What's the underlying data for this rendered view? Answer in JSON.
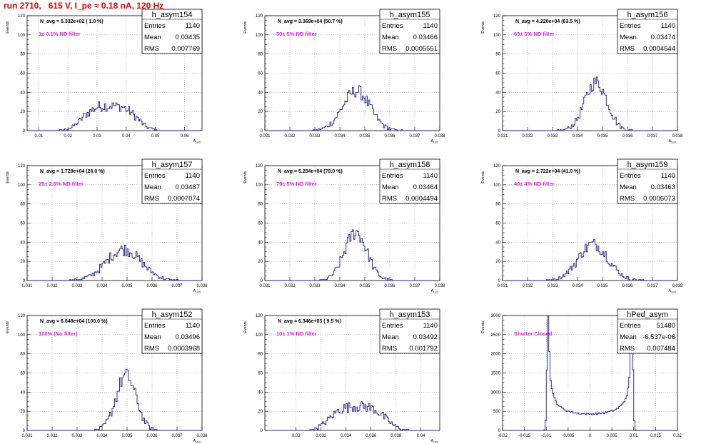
{
  "page": {
    "title": "run 2710,   615 V, I_pe ≈ 0.18 nA, 120 Hz"
  },
  "chart_data": [
    {
      "type": "histogram",
      "title": "h_asym154",
      "annotation": "N_avg = 5.332e+02 ( 1.0 %)",
      "label": "1± 0.1% ND filter",
      "ylabel": "Events",
      "xlabel": "A_LED",
      "xlim": [
        0.006,
        0.066
      ],
      "ylim": [
        0,
        120
      ],
      "xticks": [
        0.01,
        0.02,
        0.03,
        0.04,
        0.05,
        0.06
      ],
      "yticks": [
        0,
        20,
        40,
        60,
        80,
        100,
        120
      ],
      "stats": {
        "entries": "1140",
        "mean": "0.03435",
        "rms": "0.007769"
      },
      "dist": {
        "mean": 0.03435,
        "sigma": 0.0075,
        "shape": "wide"
      }
    },
    {
      "type": "histogram",
      "title": "h_asym155",
      "annotation": "N_avg = 3.369e+04 (50.7 %)",
      "label": "50± 5% ND filter",
      "ylabel": "Events",
      "xlabel": "A_LED",
      "xlim": [
        0.031,
        0.038
      ],
      "ylim": [
        0,
        120
      ],
      "xticks": [
        0.031,
        0.032,
        0.033,
        0.034,
        0.035,
        0.036,
        0.037,
        0.038
      ],
      "yticks": [
        0,
        20,
        40,
        60,
        80,
        100,
        120
      ],
      "stats": {
        "entries": "1140",
        "mean": "0.03466",
        "rms": "0.0005551"
      },
      "dist": {
        "mean": 0.03466,
        "sigma": 0.00055,
        "shape": "gauss"
      }
    },
    {
      "type": "histogram",
      "title": "h_asym156",
      "annotation": "N_avg = 4.220e+04 (63.5 %)",
      "label": "63± 5% ND filter",
      "ylabel": "Events",
      "xlabel": "A_LED",
      "xlim": [
        0.031,
        0.038
      ],
      "ylim": [
        0,
        120
      ],
      "xticks": [
        0.031,
        0.032,
        0.033,
        0.034,
        0.035,
        0.036,
        0.037,
        0.038
      ],
      "yticks": [
        0,
        20,
        40,
        60,
        80,
        100,
        120
      ],
      "stats": {
        "entries": "1140",
        "mean": "0.03474",
        "rms": "0.0004544"
      },
      "dist": {
        "mean": 0.03474,
        "sigma": 0.00045,
        "shape": "gauss"
      }
    },
    {
      "type": "histogram",
      "title": "h_asym157",
      "annotation": "N_avg = 1.729e+04 (26.0 %)",
      "label": "25± 2.5% ND filter",
      "ylabel": "Events",
      "xlabel": "A_LED",
      "xlim": [
        0.031,
        0.038
      ],
      "ylim": [
        0,
        120
      ],
      "xticks": [
        0.031,
        0.032,
        0.033,
        0.034,
        0.035,
        0.036,
        0.037,
        0.038
      ],
      "yticks": [
        0,
        20,
        40,
        60,
        80,
        100,
        120
      ],
      "stats": {
        "entries": "1140",
        "mean": "0.03487",
        "rms": "0.0007074"
      },
      "dist": {
        "mean": 0.03487,
        "sigma": 0.0007,
        "shape": "gauss"
      }
    },
    {
      "type": "histogram",
      "title": "h_asym158",
      "annotation": "N_avg = 5.254e+04 (79.0 %)",
      "label": "79± 5% ND filter",
      "ylabel": "Events",
      "xlabel": "A_LED",
      "xlim": [
        0.031,
        0.038
      ],
      "ylim": [
        0,
        120
      ],
      "xticks": [
        0.031,
        0.032,
        0.033,
        0.034,
        0.035,
        0.036,
        0.037,
        0.038
      ],
      "yticks": [
        0,
        20,
        40,
        60,
        80,
        100,
        120
      ],
      "stats": {
        "entries": "1140",
        "mean": "0.03464",
        "rms": "0.0004494"
      },
      "dist": {
        "mean": 0.03464,
        "sigma": 0.00045,
        "shape": "gauss"
      }
    },
    {
      "type": "histogram",
      "title": "h_asym159",
      "annotation": "N_avg = 2.722e+04 (41.0 %)",
      "label": "40± 4% ND filter",
      "ylabel": "Events",
      "xlabel": "A_LED",
      "xlim": [
        0.031,
        0.038
      ],
      "ylim": [
        0,
        120
      ],
      "xticks": [
        0.031,
        0.032,
        0.033,
        0.034,
        0.035,
        0.036,
        0.037,
        0.038
      ],
      "yticks": [
        0,
        20,
        40,
        60,
        80,
        100,
        120
      ],
      "stats": {
        "entries": "1140",
        "mean": "0.03463",
        "rms": "0.0006073"
      },
      "dist": {
        "mean": 0.03463,
        "sigma": 0.0006,
        "shape": "gauss"
      }
    },
    {
      "type": "histogram",
      "title": "h_asym152",
      "annotation": "N_avg = 6.648e+04 (100.0 %)",
      "label": "100% (No filter)",
      "ylabel": "Events",
      "xlabel": "A_LED",
      "xlim": [
        0.031,
        0.038
      ],
      "ylim": [
        0,
        120
      ],
      "xticks": [
        0.031,
        0.032,
        0.033,
        0.034,
        0.035,
        0.036,
        0.037,
        0.038
      ],
      "yticks": [
        0,
        20,
        40,
        60,
        80,
        100,
        120
      ],
      "stats": {
        "entries": "1140",
        "mean": "0.03496",
        "rms": "0.0003968"
      },
      "dist": {
        "mean": 0.03496,
        "sigma": 0.0004,
        "shape": "gauss"
      }
    },
    {
      "type": "histogram",
      "title": "h_asym153",
      "annotation": "N_avg = 6.346e+03 ( 9.5 %)",
      "label": "10± 1% ND filter",
      "ylabel": "Events",
      "xlabel": "A_LED",
      "xlim": [
        0.0275,
        0.0415
      ],
      "ylim": [
        0,
        120
      ],
      "xticks": [
        0.03,
        0.032,
        0.034,
        0.036,
        0.038,
        0.04
      ],
      "yticks": [
        0,
        20,
        40,
        60,
        80,
        100,
        120
      ],
      "stats": {
        "entries": "1140",
        "mean": "0.03492",
        "rms": "0.001792"
      },
      "dist": {
        "mean": 0.03492,
        "sigma": 0.0018,
        "shape": "wide"
      }
    },
    {
      "type": "histogram",
      "title": "hPed_asym",
      "annotation": "",
      "label": "Shutter Closed",
      "ylabel": "Events",
      "xlabel": "",
      "xlim": [
        -0.02,
        0.02
      ],
      "ylim": [
        0,
        3000
      ],
      "xticks": [
        -0.02,
        -0.015,
        -0.01,
        -0.005,
        0,
        0.005,
        0.01,
        0.015,
        0.02
      ],
      "yticks": [
        0,
        500,
        1000,
        1500,
        2000,
        2500,
        3000
      ],
      "stats": {
        "entries": "51480",
        "mean": "-6.537e-06",
        "rms": "0.007484"
      },
      "dist": {
        "mean": 0,
        "sigma": 0.0095,
        "shape": "ped"
      }
    }
  ],
  "labels": {
    "entries": "Entries",
    "mean": "Mean",
    "rms": "RMS"
  },
  "colors": {
    "title": "#e00000",
    "label": "#e020e0",
    "hist": "#1a1a8c"
  }
}
